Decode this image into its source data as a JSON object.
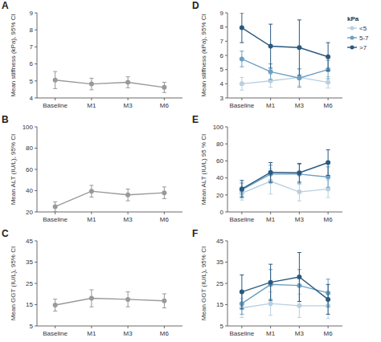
{
  "chart_data": [
    {
      "type": "line",
      "title": "A",
      "ylabel": "Mean stiffness (kPa), 95% CI",
      "categories": [
        "Baseline",
        "M1",
        "M3",
        "M6"
      ],
      "ylim": [
        4,
        9
      ],
      "yticks": [
        4,
        5,
        6,
        7,
        8,
        9
      ],
      "values": [
        5.05,
        4.82,
        4.92,
        4.62
      ],
      "ci_low": [
        4.55,
        4.48,
        4.6,
        4.32
      ],
      "ci_high": [
        5.55,
        5.16,
        5.24,
        4.92
      ],
      "color": "#999999"
    },
    {
      "type": "line",
      "title": "B",
      "ylabel": "Mean ALT (IU/L), 95% CI",
      "categories": [
        "Baseline",
        "M1",
        "M3",
        "M6"
      ],
      "ylim": [
        20,
        100
      ],
      "yticks": [
        20,
        40,
        60,
        80,
        100
      ],
      "values": [
        25.0,
        39.5,
        36.0,
        38.0
      ],
      "ci_low": [
        20.5,
        34.0,
        30.5,
        32.5
      ],
      "ci_high": [
        29.5,
        45.0,
        41.5,
        43.5
      ],
      "color": "#999999"
    },
    {
      "type": "line",
      "title": "C",
      "ylabel": "Mean GGT (IU/L), 95% CI",
      "categories": [
        "Baseline",
        "M1",
        "M3",
        "M6"
      ],
      "ylim": [
        5,
        45
      ],
      "yticks": [
        5,
        15,
        25,
        35,
        45
      ],
      "values": [
        14.8,
        18.0,
        17.5,
        16.8
      ],
      "ci_low": [
        12.0,
        14.0,
        14.0,
        13.5
      ],
      "ci_high": [
        17.6,
        22.0,
        21.0,
        20.1
      ],
      "color": "#999999"
    },
    {
      "type": "line",
      "title": "D",
      "ylabel": "Mean stiffness (kPa), 95% CI",
      "categories": [
        "Baseline",
        "M1",
        "M3",
        "M6"
      ],
      "ylim": [
        3,
        9
      ],
      "yticks": [
        3,
        4,
        5,
        6,
        7,
        8,
        9
      ],
      "legend": "upper right",
      "legend_title": "kPa",
      "series": [
        {
          "name": "<5",
          "values": [
            4.0,
            4.2,
            4.45,
            4.1
          ],
          "ci_low": [
            3.55,
            3.75,
            3.85,
            3.7
          ],
          "ci_high": [
            4.45,
            4.65,
            5.05,
            4.5
          ],
          "color": "#b8d0e0"
        },
        {
          "name": "5-7",
          "values": [
            5.75,
            4.85,
            4.4,
            5.0
          ],
          "ci_low": [
            5.2,
            4.3,
            3.75,
            4.35
          ],
          "ci_high": [
            6.3,
            5.4,
            5.05,
            5.65
          ],
          "color": "#6da0c0"
        },
        {
          "name": ">7",
          "values": [
            7.95,
            6.65,
            6.55,
            5.9
          ],
          "ci_low": [
            6.9,
            5.1,
            4.6,
            4.9
          ],
          "ci_high": [
            9.0,
            8.2,
            8.5,
            6.9
          ],
          "color": "#2a5980"
        }
      ]
    },
    {
      "type": "line",
      "title": "E",
      "ylabel": "Mean ALT (IU/L) 95 % CI",
      "categories": [
        "Baseline",
        "M1",
        "M3",
        "M6"
      ],
      "ylim": [
        0,
        100
      ],
      "yticks": [
        0,
        20,
        40,
        60,
        80,
        100
      ],
      "series": [
        {
          "values": [
            22.0,
            36.0,
            23.5,
            27.0
          ],
          "ci_low": [
            14.0,
            21.0,
            13.0,
            17.0
          ],
          "ci_high": [
            30.0,
            51.0,
            34.0,
            37.0
          ],
          "color": "#b8d0e0"
        },
        {
          "values": [
            26.0,
            44.5,
            44.5,
            41.0
          ],
          "ci_low": [
            18.0,
            34.0,
            33.0,
            29.0
          ],
          "ci_high": [
            34.0,
            55.0,
            56.0,
            53.0
          ],
          "color": "#6da0c0"
        },
        {
          "values": [
            27.0,
            46.5,
            46.0,
            58.0
          ],
          "ci_low": [
            17.0,
            35.0,
            35.0,
            43.0
          ],
          "ci_high": [
            37.0,
            58.0,
            57.0,
            73.0
          ],
          "color": "#2a5980"
        }
      ]
    },
    {
      "type": "line",
      "title": "F",
      "ylabel": "Mean GGT (IU/L), 95% CI",
      "categories": [
        "Baseline",
        "M1",
        "M3",
        "M6"
      ],
      "ylim": [
        5,
        45
      ],
      "yticks": [
        5,
        15,
        25,
        35,
        45
      ],
      "series": [
        {
          "values": [
            13.5,
            15.5,
            14.5,
            14.5
          ],
          "ci_low": [
            9.0,
            10.0,
            9.0,
            8.5
          ],
          "ci_high": [
            18.0,
            21.0,
            20.0,
            20.5
          ],
          "color": "#b8d0e0"
        },
        {
          "values": [
            15.5,
            24.5,
            24.0,
            20.5
          ],
          "ci_low": [
            10.5,
            17.5,
            16.5,
            14.0
          ],
          "ci_high": [
            20.5,
            31.5,
            31.5,
            27.0
          ],
          "color": "#6da0c0"
        },
        {
          "values": [
            21.0,
            25.5,
            28.0,
            17.5
          ],
          "ci_low": [
            13.0,
            17.0,
            16.5,
            10.5
          ],
          "ci_high": [
            29.0,
            34.0,
            39.5,
            24.5
          ],
          "color": "#2a5980"
        }
      ]
    }
  ]
}
